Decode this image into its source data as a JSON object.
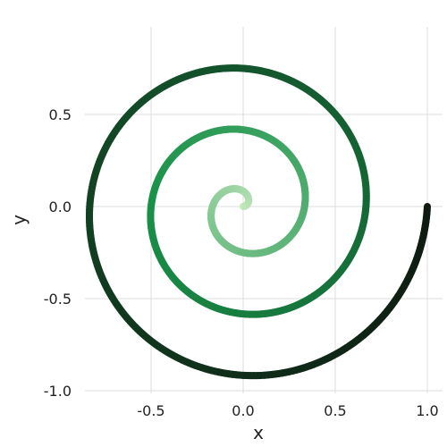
{
  "chart_data": {
    "type": "line",
    "title": "",
    "xlabel": "x",
    "ylabel": "y",
    "xlim": [
      -1.05,
      1.05
    ],
    "ylim": [
      -1.02,
      0.96
    ],
    "grid": true,
    "legend": "none",
    "x_ticks": [
      -0.5,
      0.0,
      0.5,
      1.0
    ],
    "x_tick_labels": [
      "-0.5",
      "0.0",
      "0.5",
      "1.0"
    ],
    "y_ticks": [
      0.5,
      0.0,
      -0.5,
      -1.0
    ],
    "y_tick_labels": [
      "0.5",
      "0.0",
      "-0.5",
      "-1.0"
    ],
    "series": [
      {
        "curve": "archimedean-spiral",
        "r_start": 0.0,
        "r_end": 1.0,
        "turns": 3,
        "end_point": [
          1.0,
          0.0
        ],
        "direction": "counterclockwise",
        "color_start": "#c7e9c0",
        "color_mid": "#199149",
        "color_end": "#0e1a10"
      }
    ]
  }
}
